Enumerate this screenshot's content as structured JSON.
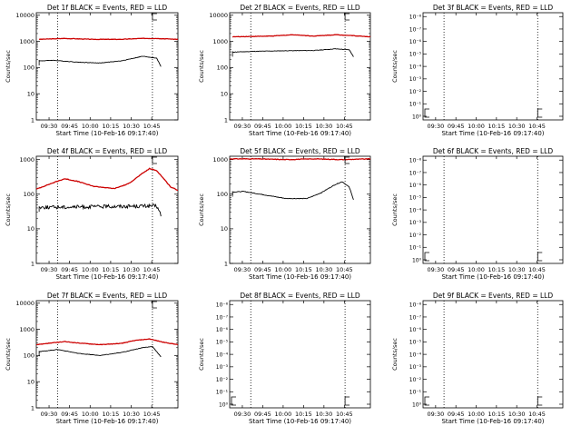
{
  "chart_data": [
    {
      "type": "line",
      "title": "Det 1f BLACK = Events, RED = LLD",
      "ylabel": "Counts/sec",
      "xlabel": "Start Time (10-Feb-16 09:17:40)",
      "scale": "log",
      "y_ticks": [
        "1",
        "10",
        "100",
        "1000",
        "10000"
      ],
      "x_ticks": [
        "09:30",
        "09:45",
        "10:00",
        "10:15",
        "10:30",
        "10:45"
      ],
      "series": [
        {
          "color": "#cc0000",
          "values": [
            [
              0.02,
              1200
            ],
            [
              0.2,
              1300
            ],
            [
              0.4,
              1200
            ],
            [
              0.6,
              1200
            ],
            [
              0.75,
              1300
            ],
            [
              0.85,
              1300
            ],
            [
              1.0,
              1200
            ]
          ]
        },
        {
          "color": "#000000",
          "values": [
            [
              0.02,
              180
            ],
            [
              0.12,
              190
            ],
            [
              0.3,
              160
            ],
            [
              0.45,
              150
            ],
            [
              0.6,
              180
            ],
            [
              0.75,
              270
            ],
            [
              0.85,
              230
            ],
            [
              0.88,
              110
            ]
          ]
        }
      ]
    },
    {
      "type": "line",
      "title": "Det 2f BLACK = Events, RED = LLD",
      "ylabel": "Counts/sec",
      "xlabel": "Start Time (10-Feb-16 09:17:40)",
      "scale": "log",
      "y_ticks": [
        "1",
        "10",
        "100",
        "1000",
        "10000"
      ],
      "x_ticks": [
        "09:30",
        "09:45",
        "10:00",
        "10:15",
        "10:30",
        "10:45"
      ],
      "series": [
        {
          "color": "#cc0000",
          "values": [
            [
              0.02,
              1500
            ],
            [
              0.3,
              1600
            ],
            [
              0.45,
              1800
            ],
            [
              0.6,
              1600
            ],
            [
              0.75,
              1800
            ],
            [
              0.85,
              1700
            ],
            [
              1.0,
              1500
            ]
          ]
        },
        {
          "color": "#000000",
          "values": [
            [
              0.02,
              390
            ],
            [
              0.2,
              420
            ],
            [
              0.4,
              440
            ],
            [
              0.6,
              450
            ],
            [
              0.75,
              520
            ],
            [
              0.85,
              480
            ],
            [
              0.88,
              260
            ]
          ]
        }
      ]
    },
    {
      "type": "line",
      "title": "Det 3f BLACK = Events, RED = LLD",
      "ylabel": "Counts/sec",
      "xlabel": "Start Time (10-Feb-16 09:17:40)",
      "scale": "neg",
      "y_ticks": [
        "10⁰",
        "10⁻¹",
        "10⁻²",
        "10⁻³",
        "10⁻⁴",
        "10⁻⁵",
        "10⁻⁶",
        "10⁻⁷",
        "10⁻⁸"
      ],
      "x_ticks": [
        "09:30",
        "09:45",
        "10:00",
        "10:15",
        "10:30",
        "10:45"
      ],
      "series": []
    },
    {
      "type": "line",
      "title": "Det 4f BLACK = Events, RED = LLD",
      "ylabel": "Counts/sec",
      "xlabel": "Start Time (10-Feb-16 09:17:40)",
      "scale": "log",
      "y_ticks": [
        "1",
        "10",
        "100",
        "1000"
      ],
      "x_ticks": [
        "09:30",
        "09:45",
        "10:00",
        "10:15",
        "10:30",
        "10:45"
      ],
      "series": [
        {
          "color": "#cc0000",
          "values": [
            [
              0.0,
              140
            ],
            [
              0.1,
              200
            ],
            [
              0.2,
              280
            ],
            [
              0.3,
              230
            ],
            [
              0.4,
              170
            ],
            [
              0.55,
              145
            ],
            [
              0.65,
              200
            ],
            [
              0.75,
              400
            ],
            [
              0.8,
              550
            ],
            [
              0.85,
              480
            ],
            [
              0.9,
              280
            ],
            [
              0.95,
              160
            ],
            [
              1.0,
              130
            ]
          ]
        },
        {
          "color": "#000000",
          "noise": 0.12,
          "values": [
            [
              0.02,
              42
            ],
            [
              0.3,
              43
            ],
            [
              0.6,
              45
            ],
            [
              0.85,
              46
            ],
            [
              0.88,
              25
            ]
          ]
        }
      ]
    },
    {
      "type": "line",
      "title": "Det 5f BLACK = Events, RED = LLD",
      "ylabel": "Counts/sec",
      "xlabel": "Start Time (10-Feb-16 09:17:40)",
      "scale": "log",
      "y_ticks": [
        "1",
        "10",
        "100",
        "1000"
      ],
      "x_ticks": [
        "09:30",
        "09:45",
        "10:00",
        "10:15",
        "10:30",
        "10:45"
      ],
      "series": [
        {
          "color": "#cc0000",
          "values": [
            [
              0.0,
              1050
            ],
            [
              0.2,
              1050
            ],
            [
              0.4,
              1000
            ],
            [
              0.6,
              1050
            ],
            [
              0.8,
              1000
            ],
            [
              1.0,
              1050
            ]
          ]
        },
        {
          "color": "#000000",
          "values": [
            [
              0.02,
              115
            ],
            [
              0.1,
              120
            ],
            [
              0.25,
              95
            ],
            [
              0.4,
              75
            ],
            [
              0.55,
              75
            ],
            [
              0.65,
              110
            ],
            [
              0.75,
              190
            ],
            [
              0.8,
              230
            ],
            [
              0.85,
              160
            ],
            [
              0.88,
              70
            ]
          ]
        }
      ]
    },
    {
      "type": "line",
      "title": "Det 6f BLACK = Events, RED = LLD",
      "ylabel": "Counts/sec",
      "xlabel": "Start Time (10-Feb-16 09:17:40)",
      "scale": "neg",
      "y_ticks": [
        "10⁰",
        "10⁻¹",
        "10⁻²",
        "10⁻³",
        "10⁻⁴",
        "10⁻⁵",
        "10⁻⁶",
        "10⁻⁷",
        "10⁻⁸"
      ],
      "x_ticks": [
        "09:30",
        "09:45",
        "10:00",
        "10:15",
        "10:30",
        "10:45"
      ],
      "series": []
    },
    {
      "type": "line",
      "title": "Det 7f BLACK = Events, RED = LLD",
      "ylabel": "Counts/sec",
      "xlabel": "Start Time (10-Feb-16 09:17:40)",
      "scale": "log",
      "y_ticks": [
        "1",
        "10",
        "100",
        "1000",
        "10000"
      ],
      "x_ticks": [
        "09:30",
        "09:45",
        "10:00",
        "10:15",
        "10:30",
        "10:45"
      ],
      "series": [
        {
          "color": "#cc0000",
          "values": [
            [
              0.0,
              260
            ],
            [
              0.1,
              300
            ],
            [
              0.2,
              340
            ],
            [
              0.3,
              300
            ],
            [
              0.45,
              260
            ],
            [
              0.6,
              290
            ],
            [
              0.7,
              380
            ],
            [
              0.8,
              430
            ],
            [
              0.9,
              320
            ],
            [
              1.0,
              260
            ]
          ]
        },
        {
          "color": "#000000",
          "values": [
            [
              0.02,
              140
            ],
            [
              0.15,
              170
            ],
            [
              0.3,
              120
            ],
            [
              0.45,
              100
            ],
            [
              0.6,
              130
            ],
            [
              0.75,
              200
            ],
            [
              0.82,
              220
            ],
            [
              0.88,
              90
            ]
          ]
        }
      ]
    },
    {
      "type": "line",
      "title": "Det 8f BLACK = Events, RED = LLD",
      "ylabel": "Counts/sec",
      "xlabel": "Start Time (10-Feb-16 09:17:40)",
      "scale": "neg",
      "y_ticks": [
        "10⁰",
        "10⁻¹",
        "10⁻²",
        "10⁻³",
        "10⁻⁴",
        "10⁻⁵",
        "10⁻⁶",
        "10⁻⁷",
        "10⁻⁸"
      ],
      "x_ticks": [
        "09:30",
        "09:45",
        "10:00",
        "10:15",
        "10:30",
        "10:45"
      ],
      "series": []
    },
    {
      "type": "line",
      "title": "Det 9f BLACK = Events, RED = LLD",
      "ylabel": "Counts/sec",
      "xlabel": "Start Time (10-Feb-16 09:17:40)",
      "scale": "neg",
      "y_ticks": [
        "10⁰",
        "10⁻¹",
        "10⁻²",
        "10⁻³",
        "10⁻⁴",
        "10⁻⁵",
        "10⁻⁶",
        "10⁻⁷",
        "10⁻⁸"
      ],
      "x_ticks": [
        "09:30",
        "09:45",
        "10:00",
        "10:15",
        "10:30",
        "10:45"
      ],
      "series": []
    }
  ]
}
